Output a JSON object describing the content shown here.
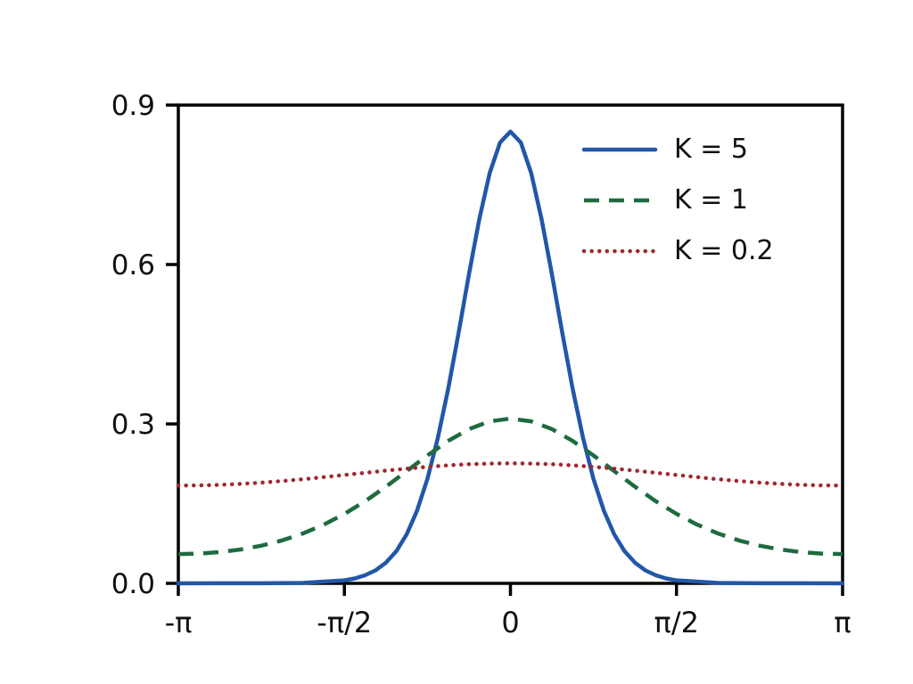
{
  "figure": {
    "background": "#ffffff",
    "axis_color": "#000000",
    "label_color": "#111111"
  },
  "chart_data": {
    "type": "line",
    "title": "",
    "xlabel": "",
    "ylabel": "",
    "grid": false,
    "legend_position": "upper right",
    "xlim": [
      -3.1416,
      3.1416
    ],
    "ylim": [
      0,
      0.9
    ],
    "x_ticks": [
      {
        "value": -3.1416,
        "label": "-π"
      },
      {
        "value": -1.5708,
        "label": "-π/2"
      },
      {
        "value": 0,
        "label": "0"
      },
      {
        "value": 1.5708,
        "label": "π/2"
      },
      {
        "value": 3.1416,
        "label": "π"
      }
    ],
    "y_ticks": [
      {
        "value": 0.0,
        "label": "0.0"
      },
      {
        "value": 0.3,
        "label": "0.3"
      },
      {
        "value": 0.6,
        "label": "0.6"
      },
      {
        "value": 0.9,
        "label": "0.9"
      }
    ],
    "x": [
      -3.1416,
      -2.9452,
      -2.7489,
      -2.5525,
      -2.3562,
      -2.1598,
      -1.9635,
      -1.7671,
      -1.5708,
      -1.3744,
      -1.1781,
      -0.9817,
      -0.7854,
      -0.589,
      -0.3927,
      -0.1963,
      0,
      0.1963,
      0.3927,
      0.589,
      0.7854,
      0.9817,
      1.1781,
      1.3744,
      1.5708,
      1.7671,
      1.9635,
      2.1598,
      2.3562,
      2.5525,
      2.7489,
      2.9452,
      3.1416
    ],
    "series": [
      {
        "name": "K = 5",
        "color": "#2257a8",
        "style": "solid",
        "dash": "",
        "linecap": "round",
        "width": 4.5,
        "x": [
          -3.1416,
          -2.7489,
          -2.3562,
          -1.9635,
          -1.5708,
          -1.4726,
          -1.3744,
          -1.2763,
          -1.1781,
          -1.0799,
          -0.9817,
          -0.8836,
          -0.7854,
          -0.6872,
          -0.589,
          -0.4909,
          -0.3927,
          -0.2945,
          -0.1963,
          -0.0982,
          0,
          0.0982,
          0.1963,
          0.2945,
          0.3927,
          0.4909,
          0.589,
          0.6872,
          0.7854,
          0.8836,
          0.9817,
          1.0799,
          1.1781,
          1.2763,
          1.3744,
          1.4726,
          1.5708,
          1.9635,
          2.3562,
          2.7489,
          3.1416
        ],
        "values": [
          0.0,
          0.0001,
          0.0002,
          0.0009,
          0.0057,
          0.0093,
          0.0152,
          0.0245,
          0.0388,
          0.0605,
          0.0921,
          0.1366,
          0.1966,
          0.2732,
          0.366,
          0.471,
          0.581,
          0.6854,
          0.772,
          0.8298,
          0.85,
          0.8298,
          0.772,
          0.6854,
          0.581,
          0.471,
          0.366,
          0.2732,
          0.1966,
          0.1366,
          0.0921,
          0.0605,
          0.0388,
          0.0245,
          0.0152,
          0.0093,
          0.0057,
          0.0009,
          0.0002,
          0.0001,
          0.0
        ]
      },
      {
        "name": "K = 1",
        "color": "#1e6b40",
        "style": "dashed",
        "dash": "17 11",
        "linecap": "butt",
        "width": 4.5,
        "values": [
          0.0551,
          0.056,
          0.0588,
          0.0637,
          0.0709,
          0.0808,
          0.0939,
          0.1104,
          0.1307,
          0.1546,
          0.1819,
          0.2112,
          0.2407,
          0.268,
          0.2903,
          0.3049,
          0.31,
          0.3049,
          0.2903,
          0.268,
          0.2407,
          0.2112,
          0.1819,
          0.1546,
          0.1307,
          0.1104,
          0.0939,
          0.0808,
          0.0709,
          0.0637,
          0.0588,
          0.056,
          0.0551
        ]
      },
      {
        "name": "K = 0.2",
        "color": "#a0282f",
        "style": "dotted",
        "dash": "0.1 8.5",
        "linecap": "round",
        "width": 4.5,
        "values": [
          0.184,
          0.1843,
          0.1854,
          0.1872,
          0.1896,
          0.1926,
          0.196,
          0.1999,
          0.2039,
          0.208,
          0.2121,
          0.2159,
          0.2193,
          0.2221,
          0.2242,
          0.2255,
          0.226,
          0.2255,
          0.2242,
          0.2221,
          0.2193,
          0.2159,
          0.2121,
          0.208,
          0.2039,
          0.1999,
          0.196,
          0.1926,
          0.1896,
          0.1872,
          0.1854,
          0.1843,
          0.184
        ]
      }
    ]
  },
  "legend": {
    "items": [
      {
        "label": "K = 5"
      },
      {
        "label": "K = 1"
      },
      {
        "label": "K = 0.2"
      }
    ]
  }
}
